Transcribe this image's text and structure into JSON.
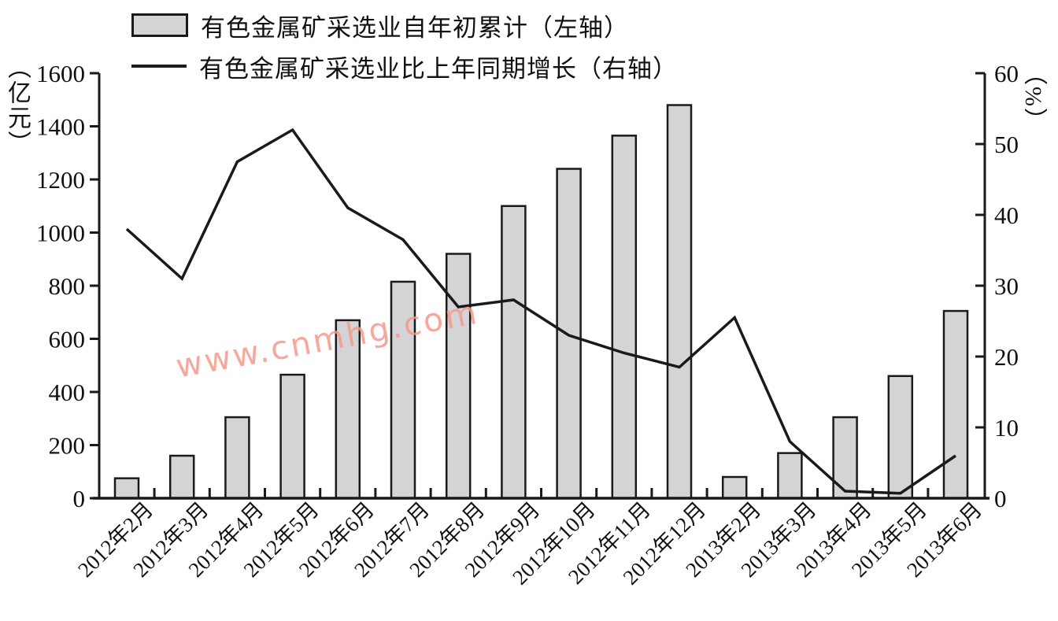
{
  "legend": {
    "bar_label": "有色金属矿采选业自年初累计（左轴）",
    "line_label": "有色金属矿采选业比上年同期增长（右轴）"
  },
  "watermark": "www.cnmhg.com",
  "colors": {
    "bar_fill": "#d4d4d6",
    "stroke": "#1a1a1a",
    "watermark": "#f49a8c"
  },
  "chart_data": {
    "type": "bar",
    "subtype": "bar-line-combo",
    "categories": [
      "2012年2月",
      "2012年3月",
      "2012年4月",
      "2012年5月",
      "2012年6月",
      "2012年7月",
      "2012年8月",
      "2012年9月",
      "2012年10月",
      "2012年11月",
      "2012年12月",
      "2013年2月",
      "2013年3月",
      "2013年4月",
      "2013年5月",
      "2013年6月"
    ],
    "series": [
      {
        "name": "有色金属矿采选业自年初累计（左轴）",
        "type": "bar",
        "axis": "left",
        "values": [
          75,
          160,
          305,
          465,
          670,
          815,
          920,
          1100,
          1240,
          1365,
          1480,
          80,
          170,
          305,
          460,
          705
        ]
      },
      {
        "name": "有色金属矿采选业比上年同期增长（右轴）",
        "type": "line",
        "axis": "right",
        "values": [
          38,
          31,
          47.5,
          52,
          41,
          36.5,
          27,
          28,
          23,
          20.5,
          18.5,
          25.5,
          8,
          1,
          0.7,
          6
        ]
      }
    ],
    "left_axis": {
      "unit": "（亿元）",
      "ylim": [
        0,
        1600
      ],
      "ticks": [
        0,
        200,
        400,
        600,
        800,
        1000,
        1200,
        1400,
        1600
      ]
    },
    "right_axis": {
      "unit": "（%）",
      "ylim": [
        0,
        60
      ],
      "ticks": [
        0,
        10,
        20,
        30,
        40,
        50,
        60
      ]
    },
    "grid": false,
    "legend_position": "top-left",
    "title": "",
    "xlabel": ""
  }
}
